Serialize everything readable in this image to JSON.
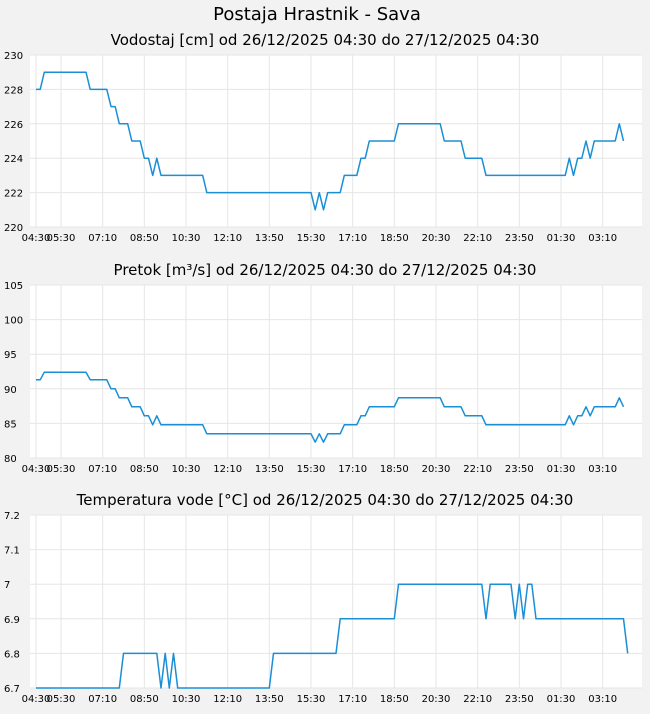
{
  "page_title": "Postaja Hrastnik - Sava",
  "colors": {
    "line": "#1a8fd6",
    "grid": "#e6e6e6",
    "plot_bg": "#ffffff",
    "page_bg": "#f2f2f2"
  },
  "chart_data": [
    {
      "type": "line",
      "title": "Vodostaj [cm] od 26/12/2025 04:30 do 27/12/2025 04:30",
      "ylim": [
        220,
        230
      ],
      "yticks": [
        "220",
        "222",
        "224",
        "226",
        "228",
        "230"
      ],
      "xticks": [
        "05:30",
        "07:10",
        "08:50",
        "10:30",
        "12:10",
        "13:50",
        "15:30",
        "17:10",
        "18:50",
        "20:30",
        "22:10",
        "23:50",
        "01:30",
        "03:10",
        "04:30"
      ],
      "series": [
        {
          "points": [
            [
              "04:30",
              228
            ],
            [
              "04:40",
              228
            ],
            [
              "04:50",
              229
            ],
            [
              "05:00",
              229
            ],
            [
              "06:00",
              229
            ],
            [
              "06:30",
              229
            ],
            [
              "06:40",
              228
            ],
            [
              "07:00",
              228
            ],
            [
              "07:20",
              228
            ],
            [
              "07:30",
              227
            ],
            [
              "07:40",
              227
            ],
            [
              "07:50",
              226
            ],
            [
              "08:00",
              226
            ],
            [
              "08:10",
              226
            ],
            [
              "08:20",
              225
            ],
            [
              "08:30",
              225
            ],
            [
              "08:40",
              225
            ],
            [
              "08:50",
              224
            ],
            [
              "09:00",
              224
            ],
            [
              "09:10",
              223
            ],
            [
              "09:20",
              224
            ],
            [
              "09:30",
              223
            ],
            [
              "10:00",
              223
            ],
            [
              "11:00",
              223
            ],
            [
              "11:10",
              223
            ],
            [
              "11:20",
              222
            ],
            [
              "12:00",
              222
            ],
            [
              "13:00",
              222
            ],
            [
              "14:00",
              222
            ],
            [
              "15:00",
              222
            ],
            [
              "15:30",
              222
            ],
            [
              "15:40",
              221
            ],
            [
              "15:50",
              222
            ],
            [
              "16:00",
              221
            ],
            [
              "16:10",
              222
            ],
            [
              "16:20",
              222
            ],
            [
              "16:40",
              222
            ],
            [
              "16:50",
              223
            ],
            [
              "17:00",
              223
            ],
            [
              "17:20",
              223
            ],
            [
              "17:30",
              224
            ],
            [
              "17:40",
              224
            ],
            [
              "17:50",
              225
            ],
            [
              "18:00",
              225
            ],
            [
              "18:30",
              225
            ],
            [
              "18:50",
              225
            ],
            [
              "19:00",
              226
            ],
            [
              "20:00",
              226
            ],
            [
              "20:40",
              226
            ],
            [
              "20:50",
              225
            ],
            [
              "21:00",
              225
            ],
            [
              "21:30",
              225
            ],
            [
              "21:40",
              224
            ],
            [
              "22:00",
              224
            ],
            [
              "22:20",
              224
            ],
            [
              "22:30",
              223
            ],
            [
              "23:00",
              223
            ],
            [
              "00:00",
              223
            ],
            [
              "01:00",
              223
            ],
            [
              "01:40",
              223
            ],
            [
              "01:50",
              224
            ],
            [
              "02:00",
              223
            ],
            [
              "02:10",
              224
            ],
            [
              "02:20",
              224
            ],
            [
              "02:30",
              225
            ],
            [
              "02:40",
              224
            ],
            [
              "02:50",
              225
            ],
            [
              "03:00",
              225
            ],
            [
              "03:10",
              225
            ],
            [
              "03:30",
              225
            ],
            [
              "03:40",
              225
            ],
            [
              "03:50",
              226
            ],
            [
              "04:00",
              225
            ]
          ]
        }
      ]
    },
    {
      "type": "line",
      "title": "Pretok [m³/s] od 26/12/2025 04:30 do 27/12/2025 04:30",
      "ylim": [
        80,
        105
      ],
      "yticks": [
        "80",
        "85",
        "90",
        "95",
        "100",
        "105"
      ],
      "xticks": [
        "05:30",
        "07:10",
        "08:50",
        "10:30",
        "12:10",
        "13:50",
        "15:30",
        "17:10",
        "18:50",
        "20:30",
        "22:10",
        "23:50",
        "01:30",
        "03:10",
        "04:30"
      ],
      "series": [
        {
          "points": [
            [
              "04:30",
              91.3
            ],
            [
              "04:40",
              91.3
            ],
            [
              "04:50",
              92.4
            ],
            [
              "05:00",
              92.4
            ],
            [
              "06:00",
              92.4
            ],
            [
              "06:30",
              92.4
            ],
            [
              "06:40",
              91.3
            ],
            [
              "07:00",
              91.3
            ],
            [
              "07:20",
              91.3
            ],
            [
              "07:30",
              90.0
            ],
            [
              "07:40",
              90.0
            ],
            [
              "07:50",
              88.7
            ],
            [
              "08:00",
              88.7
            ],
            [
              "08:10",
              88.7
            ],
            [
              "08:20",
              87.4
            ],
            [
              "08:30",
              87.4
            ],
            [
              "08:40",
              87.4
            ],
            [
              "08:50",
              86.1
            ],
            [
              "09:00",
              86.1
            ],
            [
              "09:10",
              84.8
            ],
            [
              "09:20",
              86.1
            ],
            [
              "09:30",
              84.8
            ],
            [
              "10:00",
              84.8
            ],
            [
              "11:00",
              84.8
            ],
            [
              "11:10",
              84.8
            ],
            [
              "11:20",
              83.5
            ],
            [
              "12:00",
              83.5
            ],
            [
              "13:00",
              83.5
            ],
            [
              "14:00",
              83.5
            ],
            [
              "15:00",
              83.5
            ],
            [
              "15:30",
              83.5
            ],
            [
              "15:40",
              82.3
            ],
            [
              "15:50",
              83.5
            ],
            [
              "16:00",
              82.3
            ],
            [
              "16:10",
              83.5
            ],
            [
              "16:20",
              83.5
            ],
            [
              "16:40",
              83.5
            ],
            [
              "16:50",
              84.8
            ],
            [
              "17:00",
              84.8
            ],
            [
              "17:20",
              84.8
            ],
            [
              "17:30",
              86.1
            ],
            [
              "17:40",
              86.1
            ],
            [
              "17:50",
              87.4
            ],
            [
              "18:00",
              87.4
            ],
            [
              "18:30",
              87.4
            ],
            [
              "18:50",
              87.4
            ],
            [
              "19:00",
              88.7
            ],
            [
              "20:00",
              88.7
            ],
            [
              "20:40",
              88.7
            ],
            [
              "20:50",
              87.4
            ],
            [
              "21:00",
              87.4
            ],
            [
              "21:30",
              87.4
            ],
            [
              "21:40",
              86.1
            ],
            [
              "22:00",
              86.1
            ],
            [
              "22:20",
              86.1
            ],
            [
              "22:30",
              84.8
            ],
            [
              "23:00",
              84.8
            ],
            [
              "00:00",
              84.8
            ],
            [
              "01:00",
              84.8
            ],
            [
              "01:40",
              84.8
            ],
            [
              "01:50",
              86.1
            ],
            [
              "02:00",
              84.8
            ],
            [
              "02:10",
              86.1
            ],
            [
              "02:20",
              86.1
            ],
            [
              "02:30",
              87.4
            ],
            [
              "02:40",
              86.1
            ],
            [
              "02:50",
              87.4
            ],
            [
              "03:00",
              87.4
            ],
            [
              "03:10",
              87.4
            ],
            [
              "03:30",
              87.4
            ],
            [
              "03:40",
              87.4
            ],
            [
              "03:50",
              88.7
            ],
            [
              "04:00",
              87.4
            ]
          ]
        }
      ]
    },
    {
      "type": "line",
      "title": "Temperatura vode [°C] od 26/12/2025 04:30 do 27/12/2025 04:30",
      "ylim": [
        6.7,
        7.2
      ],
      "yticks": [
        "6.7",
        "6.8",
        "6.9",
        "7",
        "7.1",
        "7.2"
      ],
      "xticks": [
        "05:30",
        "07:10",
        "08:50",
        "10:30",
        "12:10",
        "13:50",
        "15:30",
        "17:10",
        "18:50",
        "20:30",
        "22:10",
        "23:50",
        "01:30",
        "03:10",
        "04:30"
      ],
      "series": [
        {
          "points": [
            [
              "04:30",
              6.7
            ],
            [
              "05:00",
              6.7
            ],
            [
              "06:00",
              6.7
            ],
            [
              "07:00",
              6.7
            ],
            [
              "07:50",
              6.7
            ],
            [
              "08:00",
              6.8
            ],
            [
              "09:00",
              6.8
            ],
            [
              "09:10",
              6.8
            ],
            [
              "09:20",
              6.8
            ],
            [
              "09:30",
              6.7
            ],
            [
              "09:40",
              6.8
            ],
            [
              "09:50",
              6.7
            ],
            [
              "10:00",
              6.8
            ],
            [
              "10:10",
              6.7
            ],
            [
              "11:00",
              6.7
            ],
            [
              "12:00",
              6.7
            ],
            [
              "13:00",
              6.7
            ],
            [
              "13:50",
              6.7
            ],
            [
              "14:00",
              6.8
            ],
            [
              "15:00",
              6.8
            ],
            [
              "16:00",
              6.8
            ],
            [
              "16:30",
              6.8
            ],
            [
              "16:40",
              6.9
            ],
            [
              "17:00",
              6.9
            ],
            [
              "18:00",
              6.9
            ],
            [
              "18:50",
              6.9
            ],
            [
              "19:00",
              7.0
            ],
            [
              "20:00",
              7.0
            ],
            [
              "21:00",
              7.0
            ],
            [
              "22:00",
              7.0
            ],
            [
              "22:20",
              7.0
            ],
            [
              "22:30",
              6.9
            ],
            [
              "22:40",
              7.0
            ],
            [
              "23:00",
              7.0
            ],
            [
              "23:30",
              7.0
            ],
            [
              "23:40",
              6.9
            ],
            [
              "23:50",
              7.0
            ],
            [
              "00:00",
              6.9
            ],
            [
              "00:10",
              7.0
            ],
            [
              "00:20",
              7.0
            ],
            [
              "00:30",
              6.9
            ],
            [
              "01:00",
              6.9
            ],
            [
              "02:00",
              6.9
            ],
            [
              "03:00",
              6.9
            ],
            [
              "04:00",
              6.9
            ],
            [
              "04:10",
              6.8
            ]
          ]
        }
      ]
    }
  ]
}
